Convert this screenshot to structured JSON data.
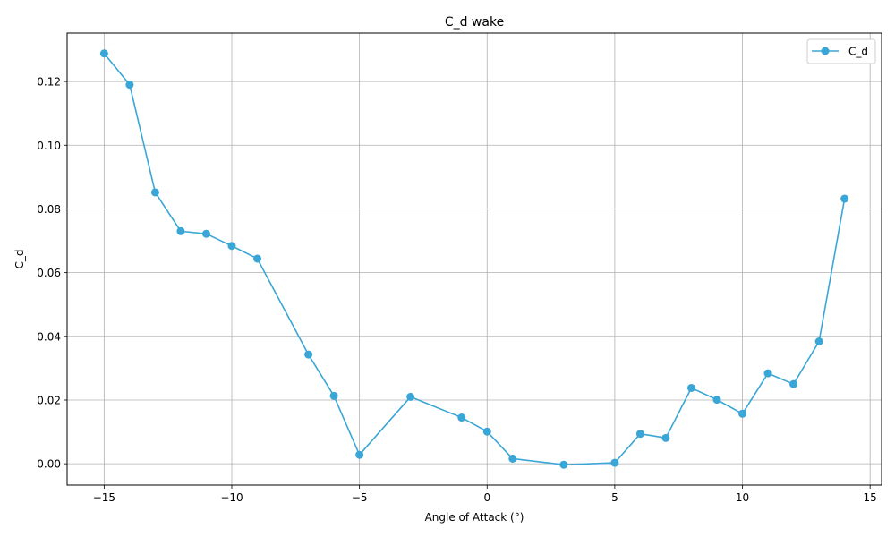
{
  "chart_data": {
    "type": "line",
    "title": "C_d wake",
    "xlabel": "Angle of Attack (°)",
    "ylabel": "C_d",
    "xlim": [
      -16.45,
      15.45
    ],
    "ylim": [
      -0.0067,
      0.1352
    ],
    "xticks": [
      -15,
      -10,
      -5,
      0,
      5,
      10,
      15
    ],
    "xtick_labels": [
      "−15",
      "−10",
      "−5",
      "0",
      "5",
      "10",
      "15"
    ],
    "yticks": [
      0.0,
      0.02,
      0.04,
      0.06,
      0.08,
      0.1,
      0.12
    ],
    "ytick_labels": [
      "0.00",
      "0.02",
      "0.04",
      "0.06",
      "0.08",
      "0.10",
      "0.12"
    ],
    "grid": true,
    "legend_position": "top-right",
    "series": [
      {
        "name": "C_d",
        "color": "#3aa6d6",
        "marker": "circle",
        "x": [
          -15,
          -14,
          -13,
          -12,
          -11,
          -10,
          -9,
          -7,
          -6,
          -5,
          -3,
          -1,
          0,
          1,
          3,
          5,
          6,
          7,
          8,
          9,
          10,
          11,
          12,
          13,
          14
        ],
        "y": [
          0.1288,
          0.119,
          0.0852,
          0.073,
          0.0722,
          0.0684,
          0.0644,
          0.0343,
          0.0213,
          0.0028,
          0.021,
          0.0145,
          0.0101,
          0.0016,
          -0.0003,
          0.0003,
          0.0094,
          0.0081,
          0.0238,
          0.0201,
          0.0157,
          0.0284,
          0.025,
          0.0384,
          0.0832
        ]
      }
    ]
  }
}
